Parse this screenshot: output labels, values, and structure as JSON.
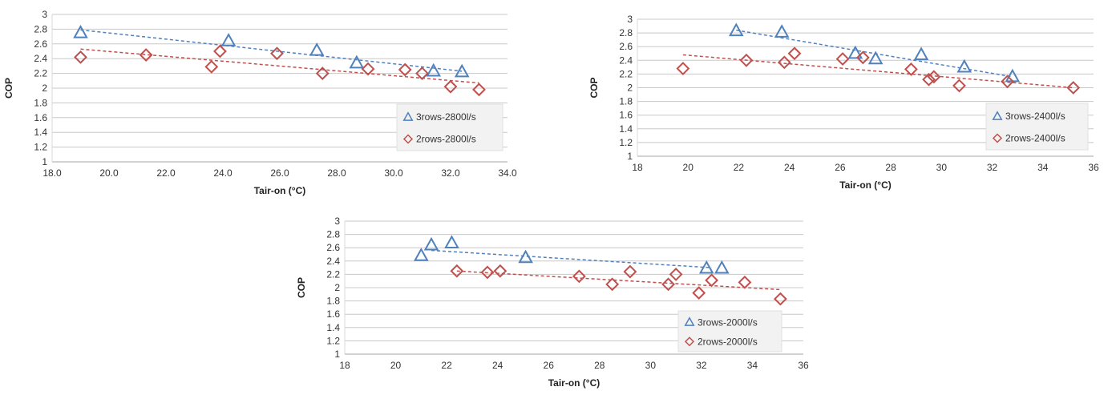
{
  "colors": {
    "series_3rows": "#4f81bd",
    "series_2rows": "#c0504d",
    "grid": "#c8c8c8",
    "legend_bg": "#f2f2f2"
  },
  "chart_data": [
    {
      "type": "scatter",
      "xlabel": "Tair-on (°C)",
      "ylabel": "COP",
      "xlim": [
        18,
        34
      ],
      "ylim": [
        1,
        3
      ],
      "xticks": [
        "18.0",
        "20.0",
        "22.0",
        "24.0",
        "26.0",
        "28.0",
        "30.0",
        "32.0",
        "34.0"
      ],
      "yticks": [
        "1",
        "1.2",
        "1.4",
        "1.6",
        "1.8",
        "2",
        "2.2",
        "2.4",
        "2.6",
        "2.8",
        "3"
      ],
      "grid": true,
      "trendlines": "linear, dashed",
      "legend": "bottom-right",
      "series": [
        {
          "name": "3rows-2800l/s",
          "marker": "triangle",
          "points": [
            [
              19.0,
              2.75
            ],
            [
              24.2,
              2.64
            ],
            [
              27.3,
              2.51
            ],
            [
              28.7,
              2.34
            ],
            [
              31.4,
              2.23
            ],
            [
              32.4,
              2.22
            ]
          ],
          "trend": [
            [
              19.0,
              2.79
            ],
            [
              32.4,
              2.23
            ]
          ]
        },
        {
          "name": "2rows-2800l/s",
          "marker": "diamond",
          "points": [
            [
              19.0,
              2.42
            ],
            [
              21.3,
              2.45
            ],
            [
              23.6,
              2.29
            ],
            [
              23.9,
              2.5
            ],
            [
              25.9,
              2.47
            ],
            [
              27.5,
              2.2
            ],
            [
              29.1,
              2.26
            ],
            [
              30.4,
              2.25
            ],
            [
              31.0,
              2.2
            ],
            [
              32.0,
              2.02
            ],
            [
              33.0,
              1.98
            ]
          ],
          "trend": [
            [
              19.0,
              2.53
            ],
            [
              33.0,
              2.07
            ]
          ]
        }
      ]
    },
    {
      "type": "scatter",
      "xlabel": "Tair-on (°C)",
      "ylabel": "COP",
      "xlim": [
        18,
        36
      ],
      "ylim": [
        1,
        3
      ],
      "xticks": [
        "18",
        "20",
        "22",
        "24",
        "26",
        "28",
        "30",
        "32",
        "34",
        "36"
      ],
      "yticks": [
        "1",
        "1.2",
        "1.4",
        "1.6",
        "1.8",
        "2",
        "2.2",
        "2.4",
        "2.6",
        "2.8",
        "3"
      ],
      "grid": true,
      "trendlines": "linear, dashed",
      "legend": "bottom-right",
      "series": [
        {
          "name": "3rows-2400l/s",
          "marker": "triangle",
          "points": [
            [
              21.9,
              2.83
            ],
            [
              23.7,
              2.81
            ],
            [
              26.6,
              2.5
            ],
            [
              27.4,
              2.42
            ],
            [
              29.2,
              2.48
            ],
            [
              30.9,
              2.3
            ],
            [
              32.8,
              2.16
            ]
          ],
          "trend": [
            [
              21.9,
              2.84
            ],
            [
              32.8,
              2.16
            ]
          ]
        },
        {
          "name": "2rows-2400l/s",
          "marker": "diamond",
          "points": [
            [
              19.8,
              2.28
            ],
            [
              22.3,
              2.4
            ],
            [
              23.8,
              2.37
            ],
            [
              24.2,
              2.5
            ],
            [
              26.1,
              2.42
            ],
            [
              26.9,
              2.44
            ],
            [
              28.8,
              2.27
            ],
            [
              29.5,
              2.12
            ],
            [
              29.7,
              2.16
            ],
            [
              30.7,
              2.03
            ],
            [
              32.6,
              2.09
            ],
            [
              35.2,
              2.0
            ]
          ],
          "trend": [
            [
              19.8,
              2.48
            ],
            [
              35.2,
              2.0
            ]
          ]
        }
      ]
    },
    {
      "type": "scatter",
      "xlabel": "Tair-on (°C)",
      "ylabel": "COP",
      "xlim": [
        18,
        36
      ],
      "ylim": [
        1,
        3
      ],
      "xticks": [
        "18",
        "20",
        "22",
        "24",
        "26",
        "28",
        "30",
        "32",
        "34",
        "36"
      ],
      "yticks": [
        "1",
        "1.2",
        "1.4",
        "1.6",
        "1.8",
        "2",
        "2.2",
        "2.4",
        "2.6",
        "2.8",
        "3"
      ],
      "grid": true,
      "trendlines": "linear, dashed",
      "legend": "bottom-right",
      "series": [
        {
          "name": "3rows-2000l/s",
          "marker": "triangle",
          "points": [
            [
              21.0,
              2.48
            ],
            [
              21.4,
              2.64
            ],
            [
              22.2,
              2.67
            ],
            [
              25.1,
              2.45
            ],
            [
              32.2,
              2.29
            ],
            [
              32.8,
              2.29
            ]
          ],
          "trend": [
            [
              21.4,
              2.56
            ],
            [
              32.4,
              2.3
            ]
          ]
        },
        {
          "name": "2rows-2000l/s",
          "marker": "diamond",
          "points": [
            [
              22.4,
              2.25
            ],
            [
              23.6,
              2.23
            ],
            [
              24.1,
              2.25
            ],
            [
              27.2,
              2.17
            ],
            [
              28.5,
              2.05
            ],
            [
              29.2,
              2.24
            ],
            [
              30.7,
              2.05
            ],
            [
              31.0,
              2.2
            ],
            [
              31.9,
              1.92
            ],
            [
              32.4,
              2.11
            ],
            [
              33.7,
              2.08
            ],
            [
              35.1,
              1.83
            ]
          ],
          "trend": [
            [
              22.4,
              2.25
            ],
            [
              35.1,
              1.97
            ]
          ]
        }
      ]
    }
  ]
}
